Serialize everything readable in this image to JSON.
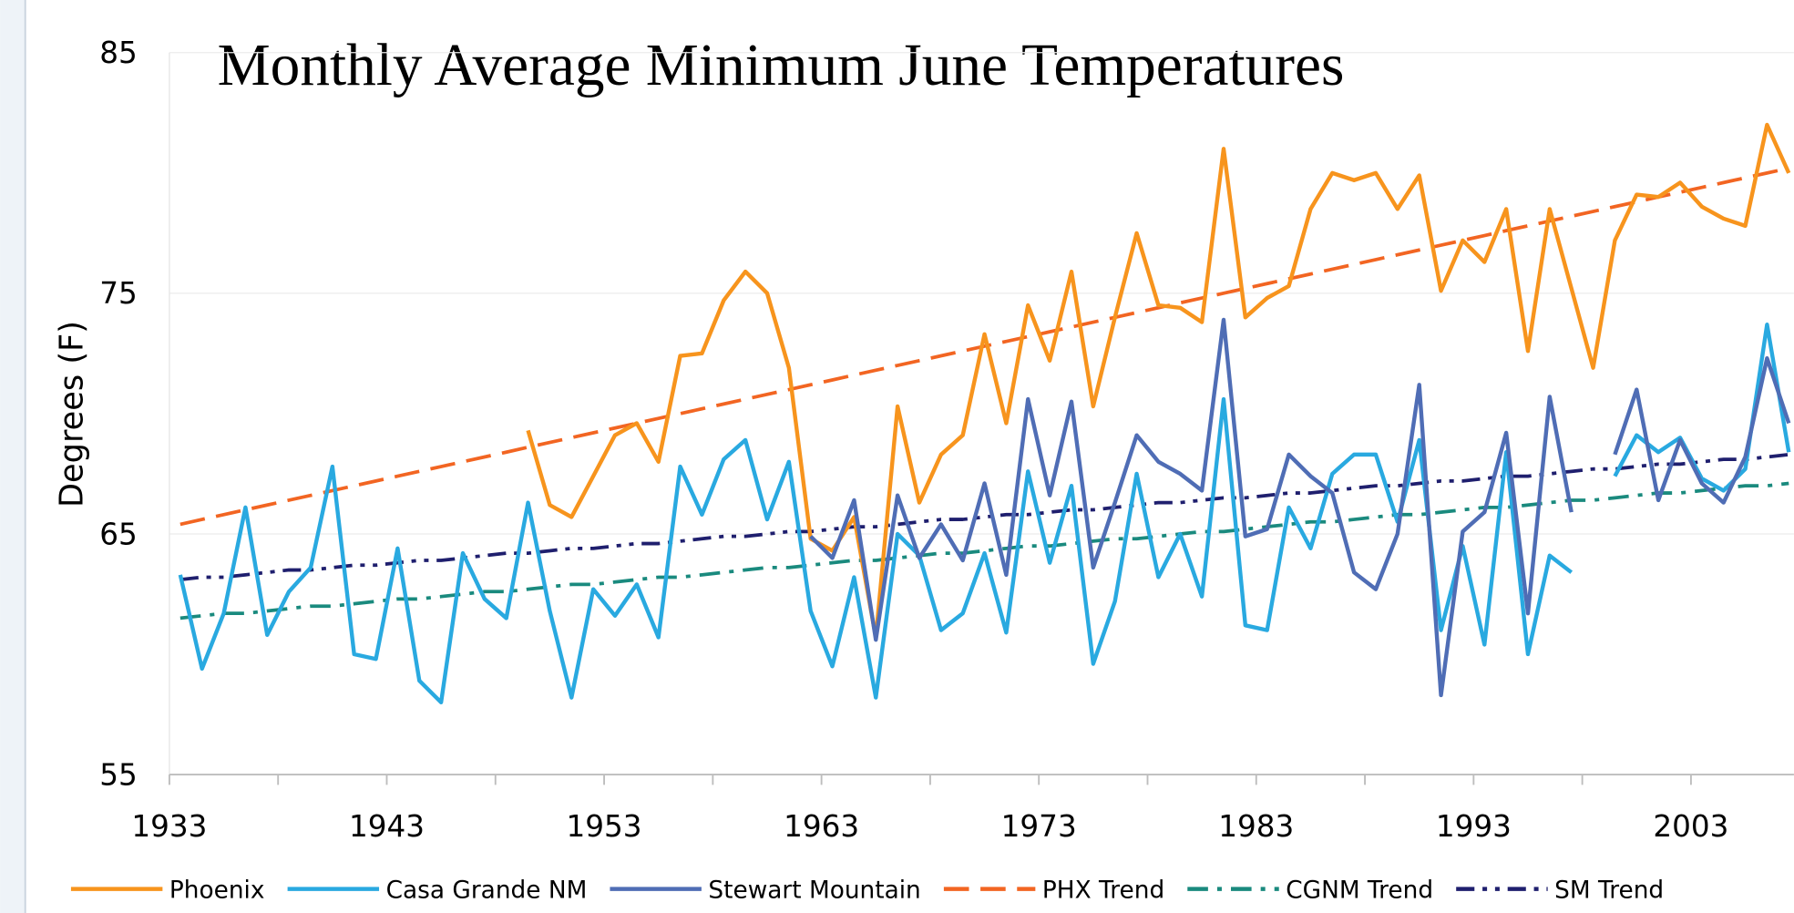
{
  "chart_data": {
    "type": "line",
    "title": "Monthly Average Minimum June Temperatures",
    "y_label": "Degrees (F)",
    "categories": [
      "1933",
      null,
      null,
      null,
      null,
      null,
      null,
      null,
      null,
      null,
      "1943",
      null,
      null,
      null,
      null,
      null,
      null,
      null,
      null,
      null,
      "1953",
      null,
      null,
      null,
      null,
      null,
      null,
      null,
      null,
      null,
      "1963",
      null,
      null,
      null,
      null,
      null,
      null,
      null,
      null,
      null,
      "1973",
      null,
      null,
      null,
      null,
      null,
      null,
      null,
      null,
      null,
      "1983",
      null,
      null,
      null,
      null,
      null,
      null,
      null,
      null,
      null,
      "1993",
      null,
      null,
      null,
      null,
      null,
      null,
      null,
      null,
      null,
      "2003",
      null,
      null,
      null,
      null
    ],
    "ylim": [
      55,
      85
    ],
    "yticks": [
      55,
      65,
      75,
      85
    ],
    "grid": true,
    "legend": "bottom",
    "series": [
      {
        "name": "Phoenix",
        "color": "#f7941d",
        "style": "solid",
        "values": [
          null,
          null,
          null,
          null,
          null,
          null,
          null,
          null,
          null,
          null,
          null,
          null,
          null,
          null,
          null,
          null,
          69.3,
          66.2,
          65.7,
          67.4,
          69.1,
          69.6,
          68.0,
          72.4,
          72.5,
          74.7,
          75.9,
          75.0,
          71.9,
          64.8,
          64.3,
          65.7,
          60.7,
          70.3,
          66.3,
          68.3,
          69.1,
          73.3,
          69.6,
          74.5,
          72.2,
          75.9,
          70.3,
          74.0,
          77.5,
          74.5,
          74.4,
          73.8,
          81.0,
          74.0,
          74.8,
          75.3,
          78.5,
          80.0,
          79.7,
          80.0,
          78.5,
          79.9,
          75.1,
          77.2,
          76.3,
          78.5,
          72.6,
          78.5,
          75.2,
          71.9,
          77.2,
          79.1,
          79.0,
          79.6,
          78.6,
          78.1,
          77.8,
          82.0,
          80.0
        ]
      },
      {
        "name": "Casa Grande NM",
        "color": "#29a9e0",
        "style": "solid",
        "values": [
          63.3,
          59.4,
          61.7,
          66.1,
          60.8,
          62.6,
          63.6,
          67.8,
          60.0,
          59.8,
          64.4,
          58.9,
          58.0,
          64.2,
          62.3,
          61.5,
          66.3,
          61.8,
          58.2,
          62.7,
          61.6,
          62.9,
          60.7,
          67.8,
          65.8,
          68.1,
          68.9,
          65.6,
          68.0,
          61.8,
          59.5,
          63.2,
          58.2,
          65.0,
          64.1,
          61.0,
          61.7,
          64.2,
          60.9,
          67.6,
          63.8,
          67.0,
          59.6,
          62.2,
          67.5,
          63.2,
          65.0,
          62.4,
          70.6,
          61.2,
          61.0,
          66.1,
          64.4,
          67.5,
          68.3,
          68.3,
          65.5,
          68.9,
          61.0,
          64.5,
          60.4,
          68.4,
          60.0,
          64.1,
          63.4,
          null,
          67.4,
          69.1,
          68.4,
          69.0,
          67.3,
          66.8,
          67.7,
          73.7,
          68.4
        ]
      },
      {
        "name": "Stewart Mountain",
        "color": "#4f6db5",
        "style": "solid",
        "values": [
          null,
          null,
          null,
          null,
          null,
          null,
          null,
          null,
          null,
          null,
          null,
          null,
          null,
          null,
          null,
          null,
          null,
          null,
          null,
          null,
          null,
          null,
          null,
          null,
          null,
          null,
          null,
          null,
          null,
          64.9,
          64.0,
          66.4,
          60.6,
          66.6,
          64.0,
          65.4,
          63.9,
          67.1,
          63.3,
          70.6,
          66.6,
          70.5,
          63.6,
          66.3,
          69.1,
          68.0,
          67.5,
          66.8,
          73.9,
          64.9,
          65.2,
          68.3,
          67.4,
          66.7,
          63.4,
          62.7,
          65.0,
          71.2,
          58.3,
          65.1,
          65.9,
          69.2,
          61.7,
          70.7,
          65.9,
          null,
          68.3,
          71.0,
          66.4,
          68.9,
          67.1,
          66.3,
          68.2,
          72.3,
          69.6
        ]
      },
      {
        "name": "PHX Trend",
        "color": "#f26522",
        "style": "dash",
        "values": [
          65.4,
          65.6,
          65.8,
          66.0,
          66.2,
          66.4,
          66.6,
          66.8,
          67.0,
          67.2,
          67.4,
          67.6,
          67.8,
          68.0,
          68.2,
          68.4,
          68.6,
          68.8,
          69.0,
          69.2,
          69.4,
          69.6,
          69.8,
          70.0,
          70.2,
          70.4,
          70.6,
          70.8,
          71.0,
          71.2,
          71.4,
          71.6,
          71.8,
          72.0,
          72.2,
          72.4,
          72.6,
          72.8,
          73.0,
          73.2,
          73.4,
          73.6,
          73.8,
          74.0,
          74.2,
          74.4,
          74.6,
          74.8,
          75.0,
          75.2,
          75.4,
          75.6,
          75.8,
          76.0,
          76.2,
          76.4,
          76.6,
          76.8,
          77.0,
          77.2,
          77.4,
          77.6,
          77.8,
          78.0,
          78.2,
          78.4,
          78.6,
          78.8,
          79.0,
          79.2,
          79.4,
          79.6,
          79.8,
          80.0,
          80.2
        ]
      },
      {
        "name": "CGNM Trend",
        "color": "#1a8a7e",
        "style": "dash-dot",
        "values": [
          61.5,
          61.6,
          61.7,
          61.7,
          61.8,
          61.9,
          62.0,
          62.0,
          62.1,
          62.2,
          62.3,
          62.3,
          62.4,
          62.5,
          62.6,
          62.6,
          62.7,
          62.8,
          62.9,
          62.9,
          63.0,
          63.1,
          63.2,
          63.2,
          63.3,
          63.4,
          63.5,
          63.6,
          63.6,
          63.7,
          63.8,
          63.9,
          63.9,
          64.0,
          64.1,
          64.2,
          64.2,
          64.3,
          64.4,
          64.5,
          64.5,
          64.6,
          64.7,
          64.8,
          64.8,
          64.9,
          65.0,
          65.1,
          65.1,
          65.2,
          65.3,
          65.4,
          65.5,
          65.5,
          65.6,
          65.7,
          65.8,
          65.8,
          65.9,
          66.0,
          66.1,
          66.1,
          66.2,
          66.3,
          66.4,
          66.4,
          66.5,
          66.6,
          66.7,
          66.7,
          66.8,
          66.9,
          67.0,
          67.0,
          67.1
        ]
      },
      {
        "name": "SM Trend",
        "color": "#1f1f6e",
        "style": "dash-dot-dot",
        "values": [
          63.1,
          63.2,
          63.2,
          63.3,
          63.4,
          63.5,
          63.5,
          63.6,
          63.7,
          63.7,
          63.8,
          63.9,
          63.9,
          64.0,
          64.1,
          64.2,
          64.2,
          64.3,
          64.4,
          64.4,
          64.5,
          64.6,
          64.6,
          64.7,
          64.8,
          64.9,
          64.9,
          65.0,
          65.1,
          65.1,
          65.2,
          65.3,
          65.3,
          65.4,
          65.5,
          65.6,
          65.6,
          65.7,
          65.8,
          65.8,
          65.9,
          66.0,
          66.0,
          66.1,
          66.2,
          66.3,
          66.3,
          66.4,
          66.5,
          66.5,
          66.6,
          66.7,
          66.7,
          66.8,
          66.9,
          67.0,
          67.0,
          67.1,
          67.2,
          67.2,
          67.3,
          67.4,
          67.4,
          67.5,
          67.6,
          67.7,
          67.7,
          67.8,
          67.9,
          67.9,
          68.0,
          68.1,
          68.1,
          68.2,
          68.3
        ]
      }
    ]
  }
}
